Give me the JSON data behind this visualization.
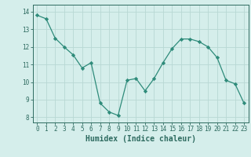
{
  "x": [
    0,
    1,
    2,
    3,
    4,
    5,
    6,
    7,
    8,
    9,
    10,
    11,
    12,
    13,
    14,
    15,
    16,
    17,
    18,
    19,
    20,
    21,
    22,
    23
  ],
  "y": [
    13.8,
    13.6,
    12.5,
    12.0,
    11.55,
    10.8,
    11.1,
    8.8,
    8.3,
    8.1,
    10.1,
    10.2,
    9.5,
    10.2,
    11.1,
    11.9,
    12.45,
    12.45,
    12.3,
    12.0,
    11.4,
    10.1,
    9.9,
    8.8
  ],
  "line_color": "#2e8b7a",
  "marker": "D",
  "marker_size": 2.2,
  "bg_color": "#d5eeeb",
  "grid_color": "#b8d8d4",
  "tick_color": "#2e6b60",
  "xlabel": "Humidex (Indice chaleur)",
  "xlabel_fontsize": 7,
  "ylabel_ticks": [
    8,
    9,
    10,
    11,
    12,
    13,
    14
  ],
  "xlim": [
    -0.5,
    23.5
  ],
  "ylim": [
    7.7,
    14.4
  ],
  "xticks": [
    0,
    1,
    2,
    3,
    4,
    5,
    6,
    7,
    8,
    9,
    10,
    11,
    12,
    13,
    14,
    15,
    16,
    17,
    18,
    19,
    20,
    21,
    22,
    23
  ],
  "tick_fontsize": 5.5
}
